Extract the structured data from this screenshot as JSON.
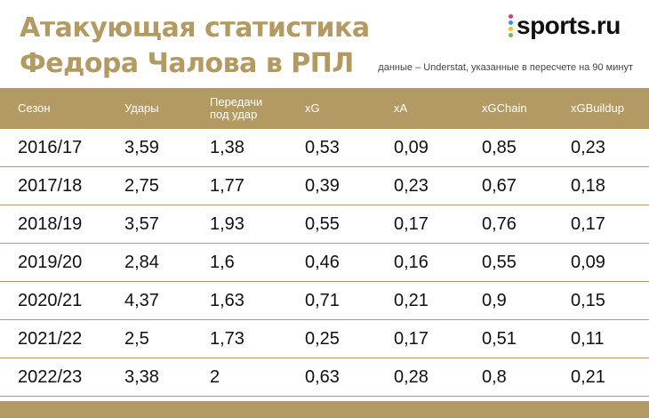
{
  "title": {
    "line1": "Атакующая статистика",
    "line2": "Федора Чалова в РПЛ"
  },
  "logo": {
    "text": "sports.ru",
    "dot_colors": [
      "#e5338b",
      "#2d9bd7",
      "#f4c21a",
      "#6ac04a"
    ]
  },
  "subtitle": "данные – Understat, указанные в пересчете на 90 минут",
  "colors": {
    "accent": "#b39a62"
  },
  "chart_data": {
    "type": "table",
    "columns": [
      "Сезон",
      "Удары",
      "Передачи под удар",
      "xG",
      "xA",
      "xGChain",
      "xGBuildup"
    ],
    "header": {
      "season": "Сезон",
      "shots": "Удары",
      "key_passes_1": "Передачи",
      "key_passes_2": "под удар",
      "xg": "xG",
      "xa": "xA",
      "xgchain": "xGChain",
      "xgbuildup": "xGBuildup"
    },
    "rows": [
      [
        "2016/17",
        "3,59",
        "1,38",
        "0,53",
        "0,09",
        "0,85",
        "0,23"
      ],
      [
        "2017/18",
        "2,75",
        "1,77",
        "0,39",
        "0,23",
        "0,67",
        "0,18"
      ],
      [
        "2018/19",
        "3,57",
        "1,93",
        "0,55",
        "0,17",
        "0,76",
        "0,17"
      ],
      [
        "2019/20",
        "2,84",
        "1,6",
        "0,46",
        "0,16",
        "0,55",
        "0,09"
      ],
      [
        "2020/21",
        "4,37",
        "1,63",
        "0,71",
        "0,21",
        "0,9",
        "0,15"
      ],
      [
        "2021/22",
        "2,5",
        "1,73",
        "0,25",
        "0,17",
        "0,51",
        "0,11"
      ],
      [
        "2022/23",
        "3,38",
        "2",
        "0,63",
        "0,28",
        "0,8",
        "0,21"
      ]
    ]
  }
}
